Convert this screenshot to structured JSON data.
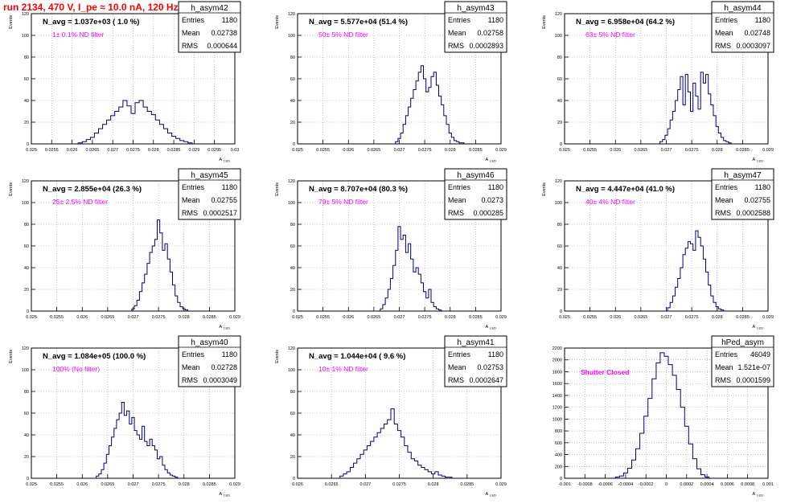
{
  "run_title": "run 2134,   470 V, I_pe ≈ 10.0 nA, 120 Hz",
  "colors": {
    "hist_line": "#000080",
    "grid": "#999999",
    "filter_label": "#ff00ff",
    "run_title": "#ff0000"
  },
  "chart_data": [
    {
      "type": "histogram",
      "name": "h_asym42",
      "ylabel": "Events",
      "xlabel": "A",
      "xlabel_sub": "LED",
      "navg_label": "N_avg = 1.037e+03 ( 1.0 %)",
      "filter_label": "1± 0.1% ND filter",
      "stats": [
        [
          "Entries",
          "1180"
        ],
        [
          "Mean",
          "0.02738"
        ],
        [
          "RMS",
          "0.000644"
        ]
      ],
      "xlim": [
        0.025,
        0.03
      ],
      "ylim": [
        0,
        120
      ],
      "xticks": [
        "0.025",
        "0.0255",
        "0.026",
        "0.0265",
        "0.027",
        "0.0275",
        "0.028",
        "0.0285",
        "0.029",
        "0.0295",
        "0.03"
      ],
      "yticks": [
        "0",
        "20",
        "40",
        "60",
        "80",
        "100",
        "120"
      ],
      "grid": true,
      "x": [
        0.0262,
        0.0263,
        0.0264,
        0.0265,
        0.0266,
        0.0267,
        0.0268,
        0.0269,
        0.027,
        0.0271,
        0.0272,
        0.0273,
        0.0274,
        0.0275,
        0.0276,
        0.0277,
        0.0278,
        0.0279,
        0.028,
        0.0281,
        0.0282,
        0.0283,
        0.0284,
        0.0285,
        0.0286,
        0.0287,
        0.0288,
        0.0289
      ],
      "values": [
        1,
        2,
        4,
        6,
        10,
        14,
        18,
        22,
        26,
        30,
        34,
        40,
        35,
        28,
        38,
        40,
        34,
        30,
        27,
        22,
        18,
        14,
        10,
        7,
        5,
        3,
        2,
        1
      ]
    },
    {
      "type": "histogram",
      "name": "h_asym43",
      "ylabel": "Events",
      "xlabel": "A",
      "xlabel_sub": "LED",
      "navg_label": "N_avg = 5.577e+04 (51.4 %)",
      "filter_label": "50± 5% ND filter",
      "stats": [
        [
          "Entries",
          "1180"
        ],
        [
          "Mean",
          "0.02758"
        ],
        [
          "RMS",
          "0.0002893"
        ]
      ],
      "xlim": [
        0.025,
        0.029
      ],
      "ylim": [
        0,
        120
      ],
      "xticks": [
        "0.025",
        "0.0255",
        "0.026",
        "0.0265",
        "0.027",
        "0.0275",
        "0.028",
        "0.0285",
        "0.029"
      ],
      "yticks": [
        "0",
        "20",
        "40",
        "60",
        "80",
        "100",
        "120"
      ],
      "grid": true,
      "x": [
        0.02695,
        0.027,
        0.02705,
        0.0271,
        0.02715,
        0.0272,
        0.02725,
        0.0273,
        0.02735,
        0.0274,
        0.02745,
        0.0275,
        0.02755,
        0.0276,
        0.02765,
        0.0277,
        0.02775,
        0.0278,
        0.02785,
        0.0279,
        0.02795,
        0.028,
        0.02805,
        0.0281,
        0.02815,
        0.0282,
        0.02825
      ],
      "values": [
        2,
        5,
        10,
        18,
        26,
        34,
        42,
        50,
        58,
        66,
        72,
        60,
        48,
        52,
        62,
        66,
        54,
        44,
        36,
        26,
        18,
        10,
        6,
        3,
        2,
        1,
        1
      ]
    },
    {
      "type": "histogram",
      "name": "h_asym44",
      "ylabel": "Events",
      "xlabel": "A",
      "xlabel_sub": "LED",
      "navg_label": "N_avg = 6.958e+04 (64.2 %)",
      "filter_label": "63± 5% ND filter",
      "stats": [
        [
          "Entries",
          "1180"
        ],
        [
          "Mean",
          "0.02748"
        ],
        [
          "RMS",
          "0.0003097"
        ]
      ],
      "xlim": [
        0.025,
        0.029
      ],
      "ylim": [
        0,
        120
      ],
      "xticks": [
        "0.025",
        "0.0255",
        "0.026",
        "0.0265",
        "0.027",
        "0.0275",
        "0.028",
        "0.0285",
        "0.029"
      ],
      "yticks": [
        "0",
        "20",
        "40",
        "60",
        "80",
        "100",
        "120"
      ],
      "grid": true,
      "x": [
        0.0269,
        0.02695,
        0.027,
        0.02705,
        0.0271,
        0.02715,
        0.0272,
        0.02725,
        0.0273,
        0.02735,
        0.0274,
        0.02745,
        0.0275,
        0.02755,
        0.0276,
        0.02765,
        0.0277,
        0.02775,
        0.0278,
        0.02785,
        0.0279,
        0.02795,
        0.028,
        0.02805,
        0.0281,
        0.02815,
        0.0282,
        0.02825
      ],
      "values": [
        2,
        4,
        8,
        14,
        22,
        30,
        40,
        50,
        62,
        36,
        64,
        48,
        30,
        56,
        44,
        32,
        66,
        56,
        64,
        46,
        36,
        26,
        16,
        10,
        6,
        3,
        2,
        1
      ]
    },
    {
      "type": "histogram",
      "name": "h_asym45",
      "ylabel": "Events",
      "xlabel": "A",
      "xlabel_sub": "LED",
      "navg_label": "N_avg = 2.855e+04 (26.3 %)",
      "filter_label": "25± 2.5% ND filter",
      "stats": [
        [
          "Entries",
          "1180"
        ],
        [
          "Mean",
          "0.02755"
        ],
        [
          "RMS",
          "0.0002517"
        ]
      ],
      "xlim": [
        0.025,
        0.029
      ],
      "ylim": [
        0,
        120
      ],
      "xticks": [
        "0.025",
        "0.0255",
        "0.026",
        "0.0265",
        "0.027",
        "0.0275",
        "0.028",
        "0.0285",
        "0.029"
      ],
      "yticks": [
        "0",
        "20",
        "40",
        "60",
        "80",
        "100",
        "120"
      ],
      "grid": true,
      "x": [
        0.027,
        0.02705,
        0.0271,
        0.02715,
        0.0272,
        0.02725,
        0.0273,
        0.02735,
        0.0274,
        0.02745,
        0.0275,
        0.02755,
        0.0276,
        0.02765,
        0.0277,
        0.02775,
        0.0278,
        0.02785,
        0.0279,
        0.02795,
        0.028,
        0.02805
      ],
      "values": [
        2,
        5,
        10,
        18,
        26,
        34,
        44,
        54,
        60,
        66,
        84,
        72,
        56,
        62,
        48,
        36,
        24,
        14,
        8,
        4,
        2,
        1
      ]
    },
    {
      "type": "histogram",
      "name": "h_asym46",
      "ylabel": "Events",
      "xlabel": "A",
      "xlabel_sub": "LED",
      "navg_label": "N_avg = 8.707e+04 (80.3 %)",
      "filter_label": "79± 5% ND filter",
      "stats": [
        [
          "Entries",
          "1180"
        ],
        [
          "Mean",
          "0.0273"
        ],
        [
          "RMS",
          "0.000285"
        ]
      ],
      "xlim": [
        0.025,
        0.029
      ],
      "ylim": [
        0,
        120
      ],
      "xticks": [
        "0.025",
        "0.0255",
        "0.026",
        "0.0265",
        "0.027",
        "0.0275",
        "0.028",
        "0.0285",
        "0.029"
      ],
      "yticks": [
        "0",
        "20",
        "40",
        "60",
        "80",
        "100",
        "120"
      ],
      "grid": true,
      "x": [
        0.02665,
        0.0267,
        0.02675,
        0.0268,
        0.02685,
        0.0269,
        0.02695,
        0.027,
        0.02705,
        0.0271,
        0.02715,
        0.0272,
        0.02725,
        0.0273,
        0.02735,
        0.0274,
        0.02745,
        0.0275,
        0.02755,
        0.0276,
        0.02765,
        0.0277,
        0.02775,
        0.0278
      ],
      "values": [
        2,
        6,
        12,
        20,
        30,
        42,
        56,
        78,
        66,
        70,
        54,
        62,
        48,
        36,
        40,
        34,
        26,
        18,
        12,
        20,
        8,
        4,
        2,
        1
      ]
    },
    {
      "type": "histogram",
      "name": "h_asym47",
      "ylabel": "Events",
      "xlabel": "A",
      "xlabel_sub": "LED",
      "navg_label": "N_avg = 4.447e+04 (41.0 %)",
      "filter_label": "40± 4% ND filter",
      "stats": [
        [
          "Entries",
          "1180"
        ],
        [
          "Mean",
          "0.02755"
        ],
        [
          "RMS",
          "0.0002588"
        ]
      ],
      "xlim": [
        0.025,
        0.029
      ],
      "ylim": [
        0,
        120
      ],
      "xticks": [
        "0.025",
        "0.0255",
        "0.026",
        "0.0265",
        "0.027",
        "0.0275",
        "0.028",
        "0.0285",
        "0.029"
      ],
      "yticks": [
        "0",
        "20",
        "40",
        "60",
        "80",
        "100",
        "120"
      ],
      "grid": true,
      "x": [
        0.02705,
        0.0271,
        0.02715,
        0.0272,
        0.02725,
        0.0273,
        0.02735,
        0.0274,
        0.02745,
        0.0275,
        0.02755,
        0.0276,
        0.02765,
        0.0277,
        0.02775,
        0.0278,
        0.02785,
        0.0279,
        0.02795,
        0.028,
        0.02805,
        0.0281
      ],
      "values": [
        3,
        8,
        14,
        22,
        30,
        40,
        52,
        58,
        64,
        62,
        56,
        74,
        68,
        60,
        48,
        36,
        24,
        14,
        8,
        4,
        2,
        1
      ]
    },
    {
      "type": "histogram",
      "name": "h_asym40",
      "ylabel": "Events",
      "xlabel": "A",
      "xlabel_sub": "LED",
      "navg_label": "N_avg = 1.084e+05 (100.0 %)",
      "filter_label": "100% (No filter)",
      "stats": [
        [
          "Entries",
          "1180"
        ],
        [
          "Mean",
          "0.02728"
        ],
        [
          "RMS",
          "0.0003049"
        ]
      ],
      "xlim": [
        0.025,
        0.029
      ],
      "ylim": [
        0,
        120
      ],
      "xticks": [
        "0.025",
        "0.0255",
        "0.026",
        "0.0265",
        "0.027",
        "0.0275",
        "0.028",
        "0.0285",
        "0.029"
      ],
      "yticks": [
        "0",
        "20",
        "40",
        "60",
        "80",
        "100",
        "120"
      ],
      "grid": true,
      "x": [
        0.0263,
        0.02635,
        0.0264,
        0.02645,
        0.0265,
        0.02655,
        0.0266,
        0.02665,
        0.0267,
        0.02675,
        0.0268,
        0.02685,
        0.0269,
        0.02695,
        0.027,
        0.02705,
        0.0271,
        0.02715,
        0.0272,
        0.02725,
        0.0273,
        0.02735,
        0.0274,
        0.02745,
        0.0275,
        0.02755,
        0.0276,
        0.02765,
        0.0277,
        0.02775,
        0.0278,
        0.02785
      ],
      "values": [
        2,
        4,
        8,
        14,
        22,
        30,
        38,
        46,
        54,
        60,
        70,
        58,
        62,
        50,
        56,
        44,
        40,
        36,
        48,
        34,
        30,
        36,
        30,
        26,
        18,
        20,
        12,
        8,
        5,
        3,
        2,
        1
      ]
    },
    {
      "type": "histogram",
      "name": "h_asym41",
      "ylabel": "Events",
      "xlabel": "A",
      "xlabel_sub": "LED",
      "navg_label": "N_avg = 1.044e+04 ( 9.6 %)",
      "filter_label": "10± 1% ND filter",
      "stats": [
        [
          "Entries",
          "1180"
        ],
        [
          "Mean",
          "0.02753"
        ],
        [
          "RMS",
          "0.0002647"
        ]
      ],
      "xlim": [
        0.026,
        0.029
      ],
      "ylim": [
        0,
        120
      ],
      "xticks": [
        "0.026",
        "0.0265",
        "0.027",
        "0.0275",
        "0.028",
        "0.0285",
        "0.029"
      ],
      "yticks": [
        "0",
        "20",
        "40",
        "60",
        "80",
        "100",
        "120"
      ],
      "grid": true,
      "x": [
        0.02665,
        0.0267,
        0.02675,
        0.0268,
        0.02685,
        0.0269,
        0.02695,
        0.027,
        0.02705,
        0.0271,
        0.02715,
        0.0272,
        0.02725,
        0.0273,
        0.02735,
        0.0274,
        0.02745,
        0.0275,
        0.02755,
        0.0276,
        0.02765,
        0.0277,
        0.02775,
        0.0278,
        0.02785,
        0.0279,
        0.02795,
        0.028,
        0.02805,
        0.0281,
        0.02815,
        0.0282,
        0.02825
      ],
      "values": [
        2,
        4,
        6,
        10,
        14,
        18,
        22,
        26,
        30,
        34,
        38,
        42,
        46,
        50,
        54,
        64,
        50,
        44,
        38,
        30,
        24,
        18,
        16,
        12,
        10,
        8,
        6,
        4,
        6,
        3,
        2,
        1,
        1
      ]
    },
    {
      "type": "histogram",
      "name": "hPed_asym",
      "ylabel": "",
      "xlabel": "A",
      "xlabel_sub": "LED",
      "navg_label": "",
      "filter_label": "Shutter Closed",
      "stats": [
        [
          "Entries",
          "46049"
        ],
        [
          "Mean",
          "1.521e-07"
        ],
        [
          "RMS",
          "0.0001599"
        ]
      ],
      "xlim": [
        -0.001,
        0.001
      ],
      "ylim": [
        0,
        2200
      ],
      "xticks": [
        "-0.001",
        "-0.0008",
        "-0.0006",
        "-0.0004",
        "-0.0002",
        "0",
        "0.0002",
        "0.0004",
        "0.0006",
        "0.0008",
        "0.001"
      ],
      "yticks": [
        "0",
        "200",
        "400",
        "600",
        "800",
        "1000",
        "1200",
        "1400",
        "1600",
        "1800",
        "2000",
        "2200"
      ],
      "grid": true,
      "x": [
        -0.00048,
        -0.00044,
        -0.0004,
        -0.00036,
        -0.00032,
        -0.00028,
        -0.00024,
        -0.0002,
        -0.00016,
        -0.00012,
        -8e-05,
        -4e-05,
        0.0,
        4e-05,
        8e-05,
        0.00012,
        0.00016,
        0.0002,
        0.00024,
        0.00028,
        0.00032,
        0.00036,
        0.0004
      ],
      "values": [
        20,
        40,
        90,
        170,
        310,
        500,
        760,
        1050,
        1350,
        1680,
        1950,
        2120,
        2060,
        1920,
        1740,
        1500,
        1200,
        880,
        580,
        330,
        160,
        60,
        20
      ]
    }
  ]
}
